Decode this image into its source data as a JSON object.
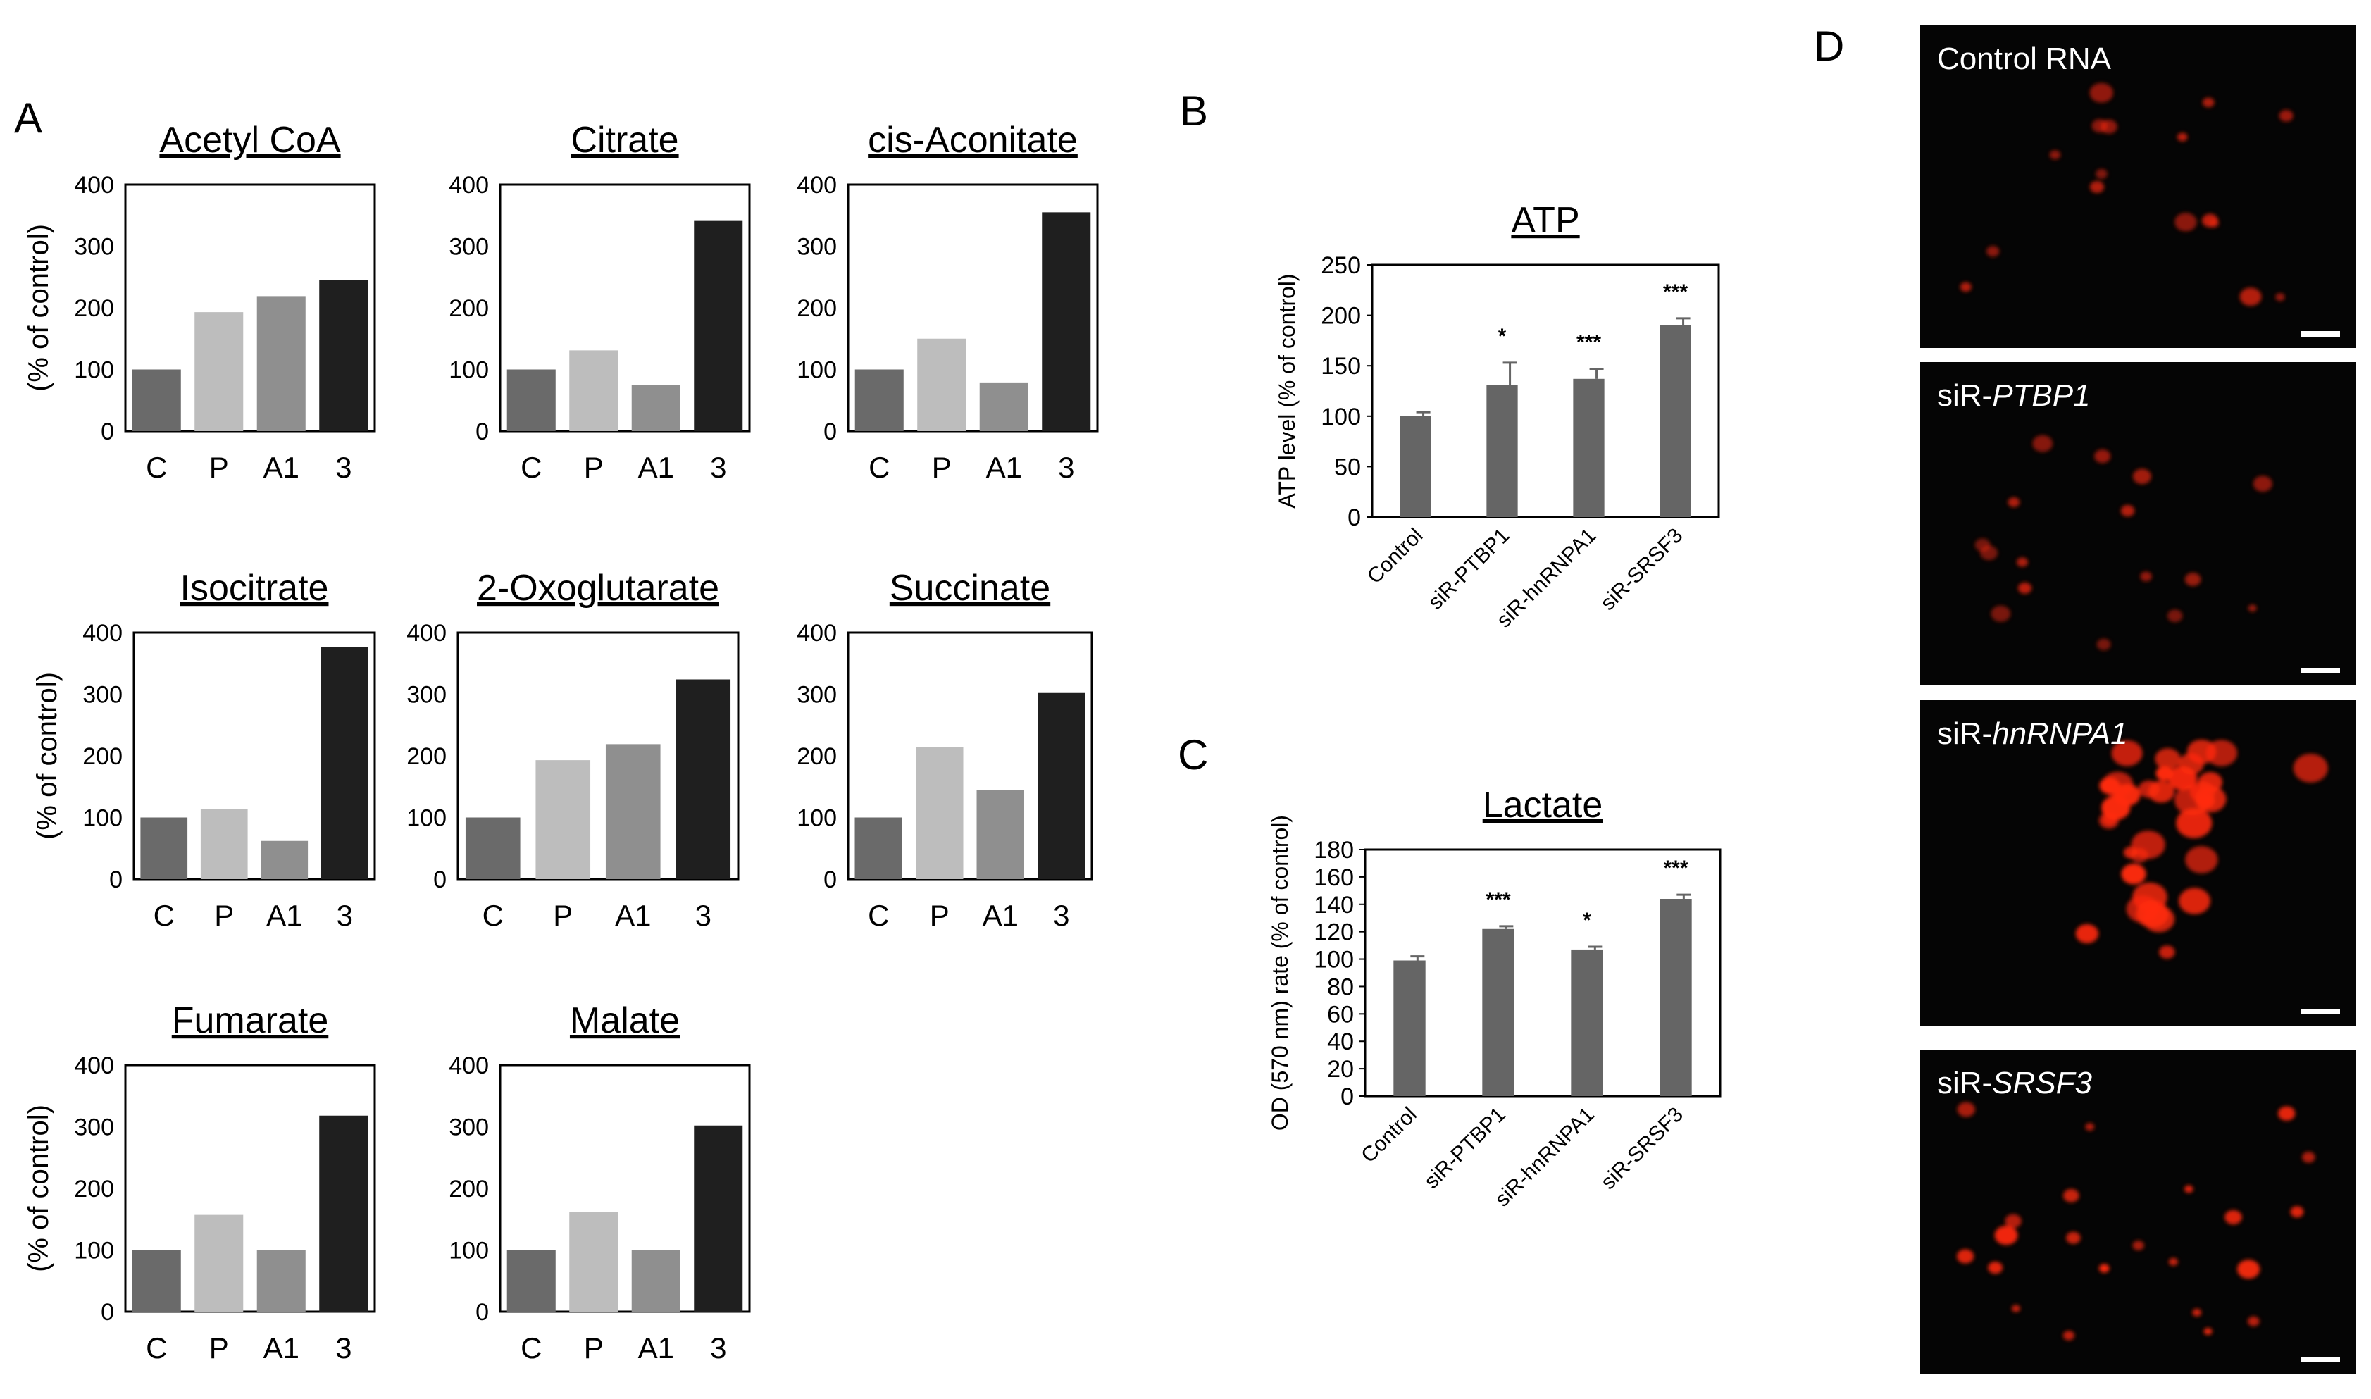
{
  "panel_letters": [
    "A",
    "B",
    "C",
    "D"
  ],
  "chart_data": [
    {
      "type": "bar",
      "panel": "A",
      "title": "Acetyl CoA",
      "ylabel": "(% of control)",
      "ylim": [
        0,
        400
      ],
      "yticks": [
        "0",
        "100",
        "200",
        "300",
        "400"
      ],
      "categories": [
        "C",
        "P",
        "A1",
        "3"
      ],
      "values": [
        100,
        193,
        219,
        245
      ],
      "colors": [
        "#6a6a6a",
        "#bdbdbd",
        "#8f8f8f",
        "#1f1f1f"
      ],
      "grid": false
    },
    {
      "type": "bar",
      "panel": "A",
      "title": "Citrate",
      "ylabel": "",
      "ylim": [
        0,
        400
      ],
      "yticks": [
        "0",
        "100",
        "200",
        "300",
        "400"
      ],
      "categories": [
        "C",
        "P",
        "A1",
        "3"
      ],
      "values": [
        100,
        131,
        75,
        341
      ],
      "colors": [
        "#6a6a6a",
        "#bdbdbd",
        "#8f8f8f",
        "#1f1f1f"
      ],
      "grid": false
    },
    {
      "type": "bar",
      "panel": "A",
      "title": "cis-Aconitate",
      "ylabel": "",
      "ylim": [
        0,
        400
      ],
      "yticks": [
        "0",
        "100",
        "200",
        "300",
        "400"
      ],
      "categories": [
        "C",
        "P",
        "A1",
        "3"
      ],
      "values": [
        100,
        150,
        79,
        355
      ],
      "colors": [
        "#6a6a6a",
        "#bdbdbd",
        "#8f8f8f",
        "#1f1f1f"
      ],
      "grid": false
    },
    {
      "type": "bar",
      "panel": "A",
      "title": "Isocitrate",
      "ylabel": "(% of control)",
      "ylim": [
        0,
        400
      ],
      "yticks": [
        "0",
        "100",
        "200",
        "300",
        "400"
      ],
      "categories": [
        "C",
        "P",
        "A1",
        "3"
      ],
      "values": [
        100,
        114,
        62,
        376
      ],
      "colors": [
        "#6a6a6a",
        "#bdbdbd",
        "#8f8f8f",
        "#1f1f1f"
      ],
      "grid": false
    },
    {
      "type": "bar",
      "panel": "A",
      "title": "2-Oxoglutarate",
      "ylabel": "",
      "ylim": [
        0,
        400
      ],
      "yticks": [
        "0",
        "100",
        "200",
        "300",
        "400"
      ],
      "categories": [
        "C",
        "P",
        "A1",
        "3"
      ],
      "values": [
        100,
        193,
        219,
        324
      ],
      "colors": [
        "#6a6a6a",
        "#bdbdbd",
        "#8f8f8f",
        "#1f1f1f"
      ],
      "grid": false
    },
    {
      "type": "bar",
      "panel": "A",
      "title": "Succinate",
      "ylabel": "",
      "ylim": [
        0,
        400
      ],
      "yticks": [
        "0",
        "100",
        "200",
        "300",
        "400"
      ],
      "categories": [
        "C",
        "P",
        "A1",
        "3"
      ],
      "values": [
        100,
        214,
        145,
        302
      ],
      "colors": [
        "#6a6a6a",
        "#bdbdbd",
        "#8f8f8f",
        "#1f1f1f"
      ],
      "grid": false
    },
    {
      "type": "bar",
      "panel": "A",
      "title": "Fumarate",
      "ylabel": "(% of control)",
      "ylim": [
        0,
        400
      ],
      "yticks": [
        "0",
        "100",
        "200",
        "300",
        "400"
      ],
      "categories": [
        "C",
        "P",
        "A1",
        "3"
      ],
      "values": [
        100,
        157,
        100,
        318
      ],
      "colors": [
        "#6a6a6a",
        "#bdbdbd",
        "#8f8f8f",
        "#1f1f1f"
      ],
      "grid": false
    },
    {
      "type": "bar",
      "panel": "A",
      "title": "Malate",
      "ylabel": "",
      "ylim": [
        0,
        400
      ],
      "yticks": [
        "0",
        "100",
        "200",
        "300",
        "400"
      ],
      "categories": [
        "C",
        "P",
        "A1",
        "3"
      ],
      "values": [
        100,
        162,
        100,
        302
      ],
      "colors": [
        "#6a6a6a",
        "#bdbdbd",
        "#8f8f8f",
        "#1f1f1f"
      ],
      "grid": false
    },
    {
      "type": "bar",
      "panel": "B",
      "title": "ATP",
      "ylabel": "ATP level (% of control)",
      "ylim": [
        0,
        250
      ],
      "yticks": [
        "0",
        "50",
        "100",
        "150",
        "200",
        "250"
      ],
      "categories": [
        "Control",
        "siR-PTBP1",
        "siR-hnRNPA1",
        "siR-SRSF3"
      ],
      "values": [
        100,
        131,
        137,
        190
      ],
      "errors": [
        4,
        22,
        10,
        7
      ],
      "significance": [
        "",
        "*",
        "***",
        "***"
      ],
      "color": "#656565",
      "grid": false
    },
    {
      "type": "bar",
      "panel": "C",
      "title": "Lactate",
      "ylabel": "OD (570 nm)  rate (% of control)",
      "ylim": [
        0,
        180
      ],
      "yticks": [
        "0",
        "20",
        "40",
        "60",
        "80",
        "100",
        "120",
        "140",
        "160",
        "180"
      ],
      "categories": [
        "Control",
        "siR-PTBP1",
        "siR-hnRNPA1",
        "siR-SRSF3"
      ],
      "values": [
        99,
        122,
        107,
        144
      ],
      "errors": [
        3,
        2,
        2,
        3
      ],
      "significance": [
        "",
        "***",
        "*",
        "***"
      ],
      "color": "#656565",
      "grid": false
    }
  ],
  "micrographs": {
    "panel": "D",
    "images": [
      {
        "label_prefix": "",
        "label_italic": "",
        "label_suffix": "Control RNA",
        "expression": "low"
      },
      {
        "label_prefix": "siR-",
        "label_italic": "PTBP1",
        "label_suffix": "",
        "expression": "low"
      },
      {
        "label_prefix": "siR-",
        "label_italic": "hnRNPA1",
        "label_suffix": "",
        "expression": "high"
      },
      {
        "label_prefix": "siR-",
        "label_italic": "SRSF3",
        "label_suffix": "",
        "expression": "medium"
      }
    ],
    "colors": {
      "background": "#050505",
      "signal": "#ff2a10",
      "scalebar": "#ffffff"
    }
  }
}
